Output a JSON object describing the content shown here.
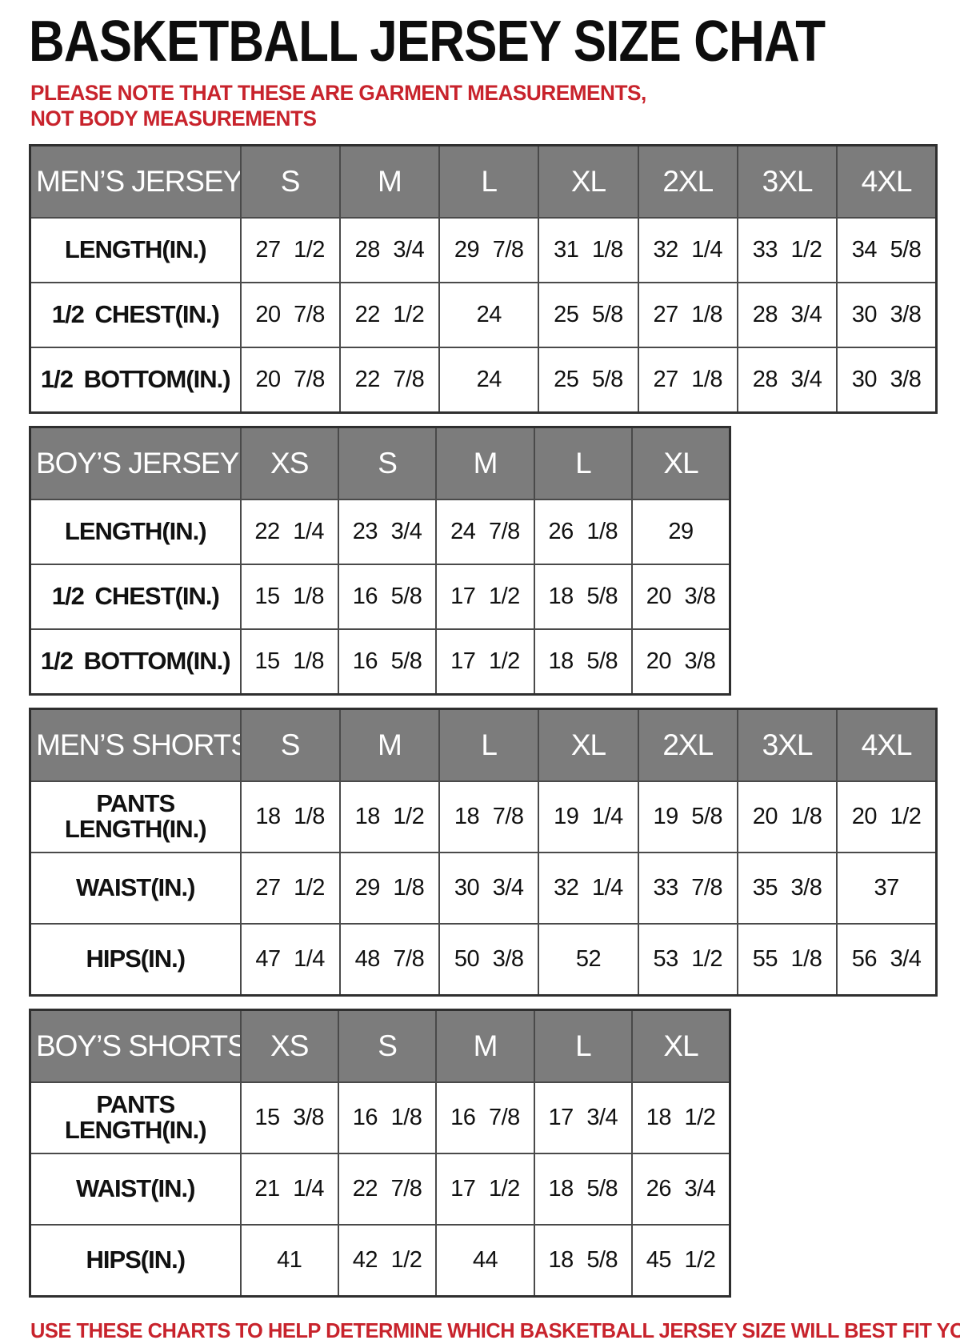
{
  "page": {
    "title": "BASKETBALL JERSEY SIZE CHAT",
    "note": "PLEASE NOTE THAT THESE ARE GARMENT MEASUREMENTS, NOT BODY MEASUREMENTS",
    "footer": "USE THESE CHARTS TO HELP DETERMINE WHICH BASKETBALL JERSEY SIZE WILL BEST FIT YOU."
  },
  "colors": {
    "title_black": "#0d0d0d",
    "note_red": "#c8232c",
    "header_bg": "#7c7c7c",
    "header_text": "#ffffff",
    "border": "#4a4a4a",
    "border_dark": "#2f2f2f"
  },
  "tables": [
    {
      "id": "mens-jersey",
      "header": "MEN’S JERSEY",
      "sizes": [
        "S",
        "M",
        "L",
        "XL",
        "2XL",
        "3XL",
        "4XL"
      ],
      "rows": [
        {
          "label": "LENGTH(IN.)",
          "values": [
            "27 1/2",
            "28 3/4",
            "29 7/8",
            "31 1/8",
            "32 1/4",
            "33 1/2",
            "34 5/8"
          ]
        },
        {
          "label": "1/2 CHEST(IN.)",
          "values": [
            "20 7/8",
            "22 1/2",
            "24",
            "25 5/8",
            "27 1/8",
            "28 3/4",
            "30 3/8"
          ]
        },
        {
          "label": "1/2 BOTTOM(IN.)",
          "values": [
            "20 7/8",
            "22 7/8",
            "24",
            "25 5/8",
            "27 1/8",
            "28 3/4",
            "30 3/8"
          ]
        }
      ]
    },
    {
      "id": "boys-jersey",
      "header": "BOY’S JERSEY",
      "sizes": [
        "XS",
        "S",
        "M",
        "L",
        "XL"
      ],
      "rows": [
        {
          "label": "LENGTH(IN.)",
          "values": [
            "22 1/4",
            "23 3/4",
            "24 7/8",
            "26 1/8",
            "29"
          ]
        },
        {
          "label": "1/2 CHEST(IN.)",
          "values": [
            "15 1/8",
            "16 5/8",
            "17 1/2",
            "18 5/8",
            "20 3/8"
          ]
        },
        {
          "label": "1/2 BOTTOM(IN.)",
          "values": [
            "15 1/8",
            "16 5/8",
            "17 1/2",
            "18 5/8",
            "20 3/8"
          ]
        }
      ]
    },
    {
      "id": "mens-shorts",
      "header": "MEN’S SHORTS",
      "tall": true,
      "sizes": [
        "S",
        "M",
        "L",
        "XL",
        "2XL",
        "3XL",
        "4XL"
      ],
      "rows": [
        {
          "label": "PANTS LENGTH(IN.)",
          "values": [
            "18 1/8",
            "18 1/2",
            "18 7/8",
            "19 1/4",
            "19 5/8",
            "20 1/8",
            "20 1/2"
          ]
        },
        {
          "label": "WAIST(IN.)",
          "values": [
            "27 1/2",
            "29 1/8",
            "30 3/4",
            "32 1/4",
            "33 7/8",
            "35 3/8",
            "37"
          ]
        },
        {
          "label": "HIPS(IN.)",
          "values": [
            "47 1/4",
            "48 7/8",
            "50 3/8",
            "52",
            "53 1/2",
            "55 1/8",
            "56 3/4"
          ]
        }
      ]
    },
    {
      "id": "boys-shorts",
      "header": "BOY’S SHORTS",
      "tall": true,
      "sizes": [
        "XS",
        "S",
        "M",
        "L",
        "XL"
      ],
      "rows": [
        {
          "label": "PANTS LENGTH(IN.)",
          "values": [
            "15 3/8",
            "16 1/8",
            "16 7/8",
            "17 3/4",
            "18 1/2"
          ]
        },
        {
          "label": "WAIST(IN.)",
          "values": [
            "21 1/4",
            "22 7/8",
            "17 1/2",
            "18 5/8",
            "26 3/4"
          ]
        },
        {
          "label": "HIPS(IN.)",
          "values": [
            "41",
            "42 1/2",
            "44",
            "18 5/8",
            "45 1/2"
          ]
        }
      ]
    }
  ]
}
